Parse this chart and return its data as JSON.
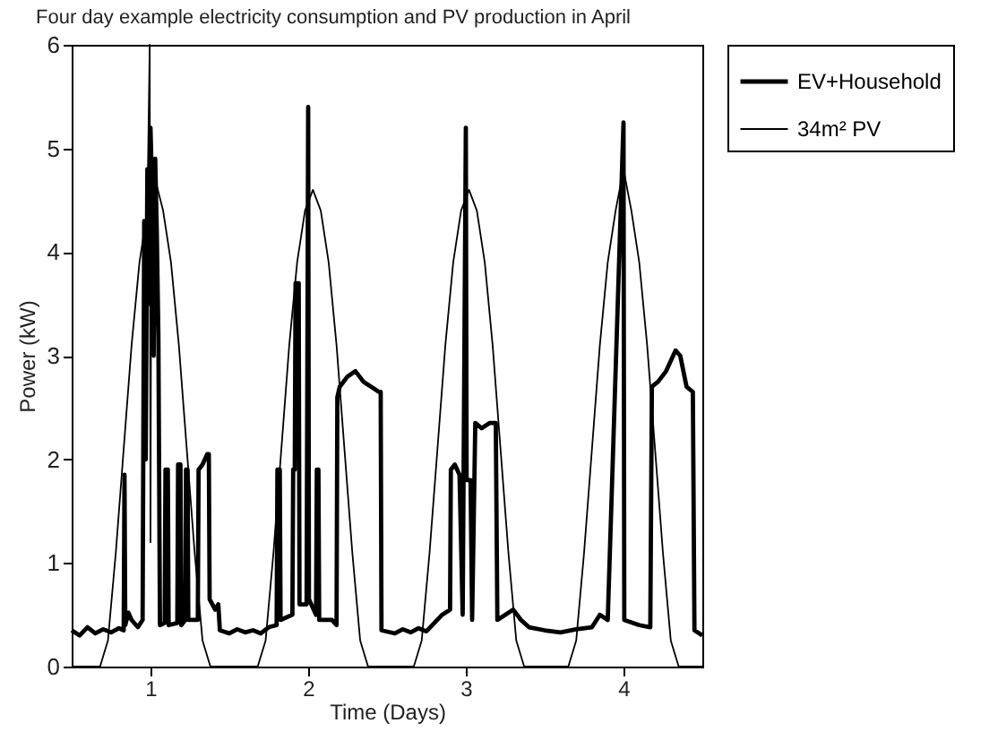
{
  "chart_data": {
    "type": "line",
    "title": "Four day example electricity consumption and PV production in April",
    "xlabel": "Time (Days)",
    "ylabel": "Power (kW)",
    "xlim": [
      0.5,
      4.5
    ],
    "xticks": [
      1,
      2,
      3,
      4
    ],
    "ylim": [
      0,
      6
    ],
    "yticks": [
      0,
      1,
      2,
      3,
      4,
      5,
      6
    ],
    "grid": false,
    "legend": "top right",
    "line_style": "solid",
    "series": [
      {
        "name": "EV+Household",
        "color": "#000000",
        "x": [
          0.5,
          0.55,
          0.6,
          0.65,
          0.7,
          0.75,
          0.8,
          0.83,
          0.835,
          0.84,
          0.86,
          0.88,
          0.92,
          0.95,
          0.96,
          0.97,
          0.98,
          0.99,
          1.0,
          1.01,
          1.02,
          1.03,
          1.04,
          1.05,
          1.06,
          1.09,
          1.095,
          1.11,
          1.115,
          1.17,
          1.175,
          1.19,
          1.195,
          1.22,
          1.225,
          1.235,
          1.24,
          1.3,
          1.305,
          1.33,
          1.36,
          1.37,
          1.375,
          1.41,
          1.43,
          1.44,
          1.5,
          1.55,
          1.6,
          1.65,
          1.7,
          1.75,
          1.8,
          1.805,
          1.82,
          1.825,
          1.9,
          1.905,
          1.915,
          1.92,
          1.94,
          1.945,
          1.99,
          2.0,
          2.005,
          2.05,
          2.055,
          2.065,
          2.07,
          2.15,
          2.18,
          2.185,
          2.2,
          2.25,
          2.3,
          2.35,
          2.4,
          2.45,
          2.46,
          2.465,
          2.55,
          2.6,
          2.65,
          2.7,
          2.75,
          2.8,
          2.85,
          2.9,
          2.905,
          2.93,
          2.96,
          2.98,
          3.0,
          3.005,
          3.03,
          3.04,
          3.06,
          3.1,
          3.15,
          3.19,
          3.2,
          3.25,
          3.3,
          3.35,
          3.4,
          3.5,
          3.6,
          3.7,
          3.8,
          3.85,
          3.9,
          4.0,
          4.005,
          4.1,
          4.17,
          4.18,
          4.22,
          4.27,
          4.3,
          4.33,
          4.36,
          4.4,
          4.44,
          4.45,
          4.5
        ],
        "values": [
          0.35,
          0.3,
          0.38,
          0.32,
          0.36,
          0.33,
          0.37,
          0.35,
          1.85,
          0.4,
          0.52,
          0.45,
          0.38,
          0.45,
          4.3,
          2.0,
          4.8,
          3.5,
          5.2,
          4.6,
          3.0,
          4.9,
          4.2,
          3.2,
          0.4,
          0.42,
          1.9,
          1.9,
          0.4,
          0.42,
          1.95,
          1.95,
          0.4,
          0.45,
          1.9,
          1.9,
          0.45,
          0.45,
          1.9,
          1.95,
          2.05,
          2.05,
          0.65,
          0.55,
          0.6,
          0.35,
          0.32,
          0.36,
          0.33,
          0.35,
          0.32,
          0.38,
          0.4,
          1.9,
          1.9,
          0.45,
          0.5,
          1.9,
          1.9,
          3.7,
          3.7,
          0.6,
          0.6,
          5.4,
          0.65,
          0.5,
          1.9,
          1.9,
          0.45,
          0.45,
          0.4,
          2.6,
          2.7,
          2.8,
          2.85,
          2.75,
          2.7,
          2.65,
          2.65,
          0.35,
          0.32,
          0.36,
          0.33,
          0.37,
          0.34,
          0.42,
          0.5,
          0.55,
          1.9,
          1.95,
          1.85,
          0.5,
          5.2,
          1.8,
          1.8,
          0.45,
          2.35,
          2.3,
          2.35,
          2.35,
          0.45,
          0.5,
          0.55,
          0.45,
          0.38,
          0.35,
          0.33,
          0.36,
          0.38,
          0.5,
          0.45,
          5.25,
          0.45,
          0.4,
          0.38,
          2.7,
          2.75,
          2.85,
          2.95,
          3.05,
          3.0,
          2.7,
          2.65,
          0.35,
          0.3
        ]
      },
      {
        "name": "34m² PV",
        "color": "#000000",
        "x": [
          0.5,
          0.68,
          0.73,
          0.78,
          0.83,
          0.88,
          0.93,
          0.98,
          0.995,
          1.0,
          1.005,
          1.03,
          1.08,
          1.13,
          1.18,
          1.23,
          1.28,
          1.33,
          1.38,
          1.68,
          1.73,
          1.78,
          1.83,
          1.88,
          1.93,
          1.98,
          2.03,
          2.08,
          2.13,
          2.18,
          2.23,
          2.28,
          2.33,
          2.38,
          2.67,
          2.72,
          2.77,
          2.82,
          2.87,
          2.92,
          2.97,
          3.02,
          3.07,
          3.12,
          3.17,
          3.22,
          3.27,
          3.32,
          3.37,
          3.65,
          3.7,
          3.75,
          3.8,
          3.85,
          3.9,
          3.95,
          4.0,
          4.05,
          4.1,
          4.15,
          4.2,
          4.25,
          4.3,
          4.35,
          4.5
        ],
        "values": [
          0,
          0,
          0.25,
          1.1,
          2.1,
          3.1,
          3.9,
          4.4,
          6.0,
          1.2,
          4.6,
          4.7,
          4.4,
          3.9,
          3.1,
          2.1,
          1.1,
          0.25,
          0,
          0,
          0.25,
          1.1,
          2.1,
          3.1,
          3.9,
          4.4,
          4.6,
          4.4,
          3.9,
          3.1,
          2.1,
          1.1,
          0.25,
          0,
          0,
          0.25,
          1.1,
          2.1,
          3.1,
          3.9,
          4.4,
          4.6,
          4.4,
          3.9,
          3.1,
          2.1,
          1.1,
          0.25,
          0,
          0,
          0.25,
          1.1,
          2.1,
          3.1,
          3.9,
          4.4,
          4.8,
          4.4,
          3.9,
          3.1,
          2.1,
          1.1,
          0.25,
          0,
          0
        ]
      }
    ]
  }
}
